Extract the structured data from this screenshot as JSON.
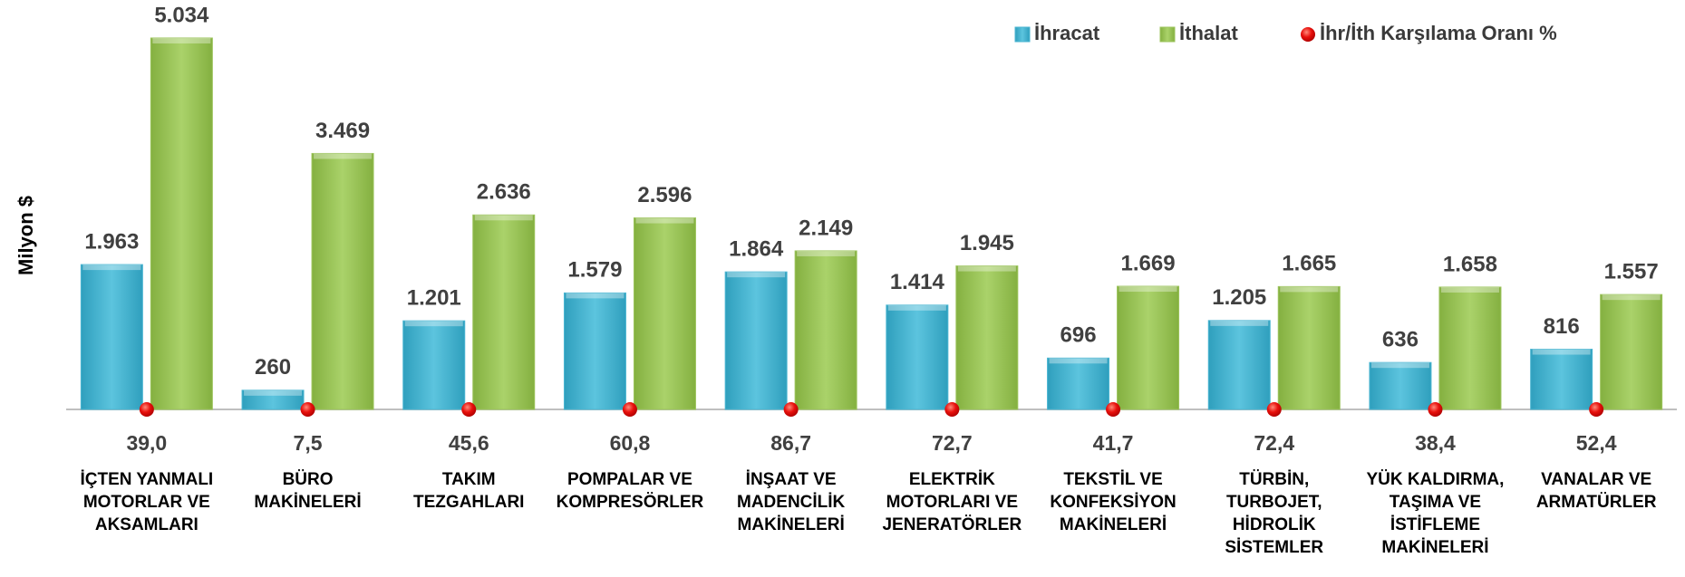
{
  "chart_data": {
    "type": "bar",
    "y_label": "Milyon $",
    "categories": [
      [
        "İÇTEN YANMALI",
        "MOTORLAR VE",
        "AKSAMLARI"
      ],
      [
        "BÜRO",
        "MAKİNELERİ"
      ],
      [
        "TAKIM",
        "TEZGAHLARI"
      ],
      [
        "POMPALAR VE",
        "KOMPRESÖRLER"
      ],
      [
        "İNŞAAT VE",
        "MADENCİLİK",
        "MAKİNELERİ"
      ],
      [
        "ELEKTRİK",
        "MOTORLARI VE",
        "JENERATÖRLER"
      ],
      [
        "TEKSTİL VE",
        "KONFEKSİYON",
        "MAKİNELERİ"
      ],
      [
        "TÜRBİN,",
        "TURBOJET,",
        "HİDROLİK",
        "SİSTEMLER"
      ],
      [
        "YÜK KALDIRMA,",
        "TAŞIMA  VE",
        "İSTİFLEME",
        "MAKİNELERİ"
      ],
      [
        "VANALAR VE",
        "ARMATÜRLER"
      ]
    ],
    "ylim": [
      0,
      5500
    ],
    "series": [
      {
        "name": "İhracat",
        "color": "#4bb6d2",
        "values": [
          1963,
          260,
          1201,
          1579,
          1864,
          1414,
          696,
          1205,
          636,
          816
        ],
        "value_labels": [
          "1.963",
          "260",
          "1.201",
          "1.579",
          "1.864",
          "1.414",
          "696",
          "1.205",
          "636",
          "816"
        ]
      },
      {
        "name": "İthalat",
        "color": "#9cc45c",
        "values": [
          5034,
          3469,
          2636,
          2596,
          2149,
          1945,
          1669,
          1665,
          1658,
          1557
        ],
        "value_labels": [
          "5.034",
          "3.469",
          "2.636",
          "2.596",
          "2.149",
          "1.945",
          "1.669",
          "1.665",
          "1.658",
          "1.557"
        ]
      },
      {
        "name": "İhr/İth Karşılama Oranı %",
        "color": "#e8100c",
        "marker": "dot",
        "values": [
          39.0,
          7.5,
          45.6,
          60.8,
          86.7,
          72.7,
          41.7,
          72.4,
          38.4,
          52.4
        ],
        "value_labels": [
          "39,0",
          "7,5",
          "45,6",
          "60,8",
          "86,7",
          "72,7",
          "41,7",
          "72,4",
          "38,4",
          "52,4"
        ]
      }
    ]
  }
}
